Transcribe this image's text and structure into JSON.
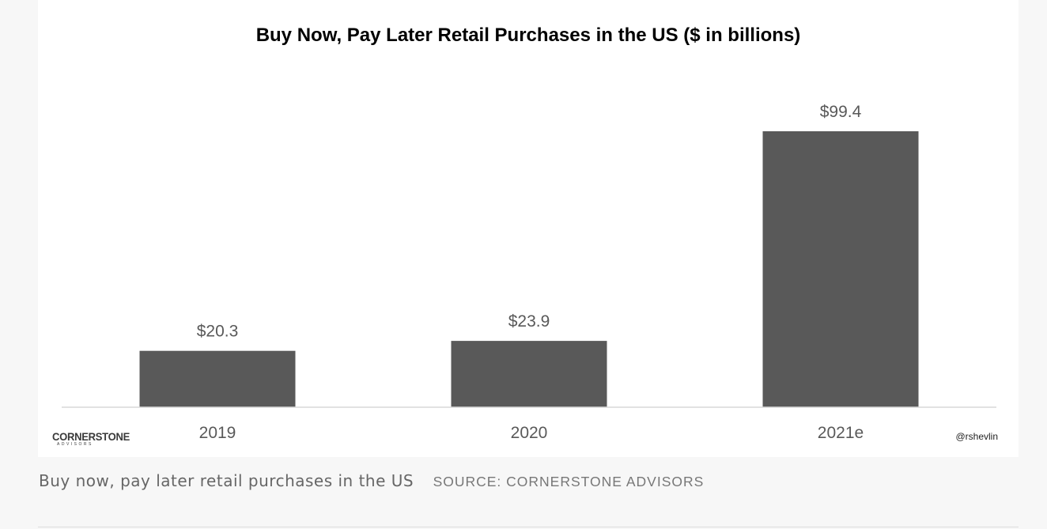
{
  "chart_data": {
    "type": "bar",
    "title": "Buy Now, Pay Later Retail Purchases in the US ($ in billions)",
    "categories": [
      "2019",
      "2020",
      "2021e"
    ],
    "values": [
      20.3,
      23.9,
      99.4
    ],
    "data_labels": [
      "$20.3",
      "$23.9",
      "$99.4"
    ],
    "xlabel": "",
    "ylabel": "",
    "ylim": [
      0,
      99.4
    ],
    "grid": false,
    "bar_color": "#595959",
    "axis_color": "#d9d9d9"
  },
  "branding": {
    "logo_name": "CORNERSTONE",
    "logo_sub": "ADVISORS",
    "handle": "@rshevlin"
  },
  "caption": {
    "text": "Buy now, pay later retail purchases in the US",
    "source": "SOURCE: CORNERSTONE ADVISORS"
  }
}
